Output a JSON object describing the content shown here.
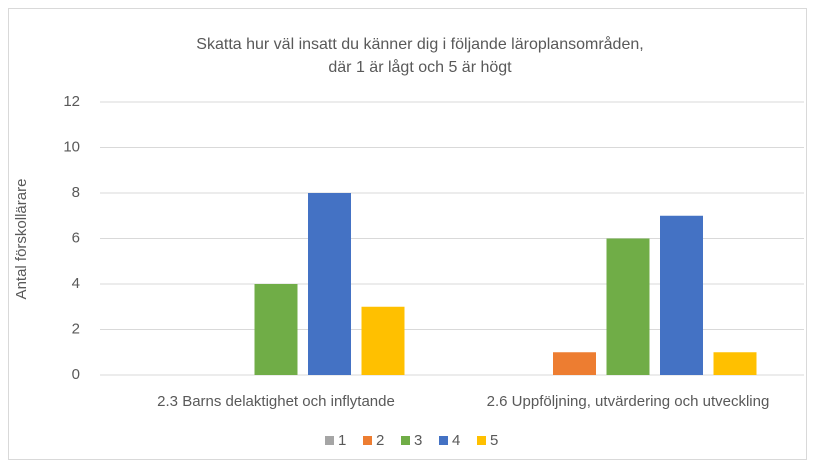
{
  "chart_data": {
    "type": "bar",
    "title": [
      "Skatta hur väl insatt du känner dig i följande läroplansområden,",
      "där 1 är lågt och 5 är högt"
    ],
    "y_label": "Antal förskollärare",
    "categories": [
      "2.3 Barns delaktighet och inflytande",
      "2.6 Uppföljning, utvärdering och utveckling"
    ],
    "series": [
      {
        "name": "1",
        "color": "#a5a5a5",
        "values": [
          0,
          0
        ]
      },
      {
        "name": "2",
        "color": "#ed7d31",
        "values": [
          0,
          1
        ]
      },
      {
        "name": "3",
        "color": "#70ad47",
        "values": [
          4,
          6
        ]
      },
      {
        "name": "4",
        "color": "#4472c4",
        "values": [
          8,
          7
        ]
      },
      {
        "name": "5",
        "color": "#ffc000",
        "values": [
          3,
          1
        ]
      }
    ],
    "ylim": [
      0,
      12
    ],
    "yticks": [
      0,
      2,
      4,
      6,
      8,
      10,
      12
    ],
    "grid": true,
    "legend": "bottom"
  }
}
